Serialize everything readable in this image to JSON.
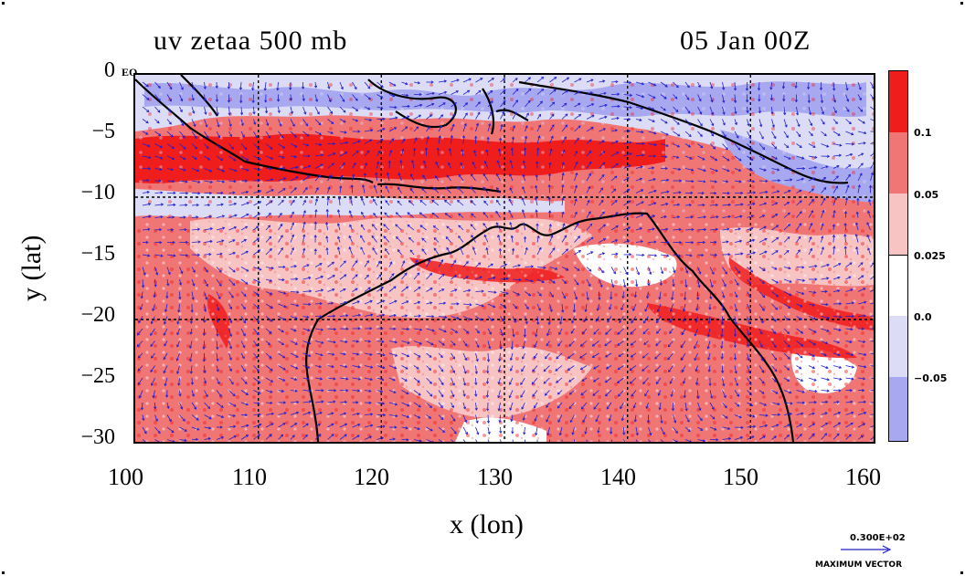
{
  "map": {
    "title": "uv zetaa 500 mb",
    "date": "05 Jan 00Z",
    "eq_label": "EQ",
    "xlabel": "x (lon)",
    "ylabel": "y (lat)",
    "x_ticks": [
      "100",
      "110",
      "120",
      "130",
      "140",
      "150",
      "160"
    ],
    "y_ticks": [
      "0",
      "−5",
      "−10",
      "−15",
      "−20",
      "−25",
      "−30"
    ],
    "lon_range": [
      100,
      160
    ],
    "lat_range": [
      -30,
      0
    ],
    "colors": {
      "strong_pos": "#f01d1d",
      "mid_pos": "#f07575",
      "weak_pos": "#f7c3c3",
      "zero": "#ffffff",
      "weak_neg": "#dcdcf6",
      "strong_neg": "#a8a8f0",
      "vectors": "#1f1fcf",
      "coast": "#000000"
    }
  },
  "colorbar": {
    "labels": [
      "0.1",
      "0.05",
      "0.025",
      "0.0",
      "−0.05"
    ]
  },
  "vector_legend": {
    "magnitude": "0.300E+02",
    "label": "MAXIMUM VECTOR"
  }
}
